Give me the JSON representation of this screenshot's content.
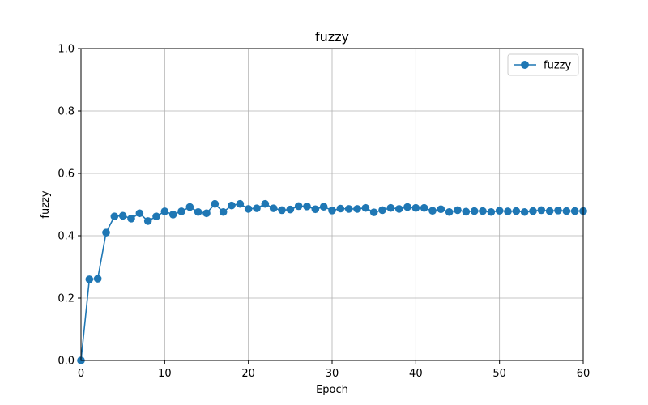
{
  "chart_data": {
    "type": "line",
    "title": "fuzzy",
    "xlabel": "Epoch",
    "ylabel": "fuzzy",
    "xlim": [
      0,
      60
    ],
    "ylim": [
      0,
      1.0
    ],
    "xticks": [
      0,
      10,
      20,
      30,
      40,
      50,
      60
    ],
    "yticks": [
      0.0,
      0.2,
      0.4,
      0.6,
      0.8,
      1.0
    ],
    "grid": true,
    "legend_position": "top-right",
    "series": [
      {
        "name": "fuzzy",
        "color": "#1f77b4",
        "marker": "circle",
        "x": [
          0,
          1,
          2,
          3,
          4,
          5,
          6,
          7,
          8,
          9,
          10,
          11,
          12,
          13,
          14,
          15,
          16,
          17,
          18,
          19,
          20,
          21,
          22,
          23,
          24,
          25,
          26,
          27,
          28,
          29,
          30,
          31,
          32,
          33,
          34,
          35,
          36,
          37,
          38,
          39,
          40,
          41,
          42,
          43,
          44,
          45,
          46,
          47,
          48,
          49,
          50,
          51,
          52,
          53,
          54,
          55,
          56,
          57,
          58,
          59,
          60
        ],
        "y": [
          0.0,
          0.26,
          0.262,
          0.41,
          0.462,
          0.464,
          0.455,
          0.472,
          0.447,
          0.462,
          0.478,
          0.468,
          0.478,
          0.492,
          0.476,
          0.472,
          0.502,
          0.476,
          0.497,
          0.502,
          0.486,
          0.488,
          0.502,
          0.488,
          0.482,
          0.484,
          0.495,
          0.494,
          0.485,
          0.493,
          0.481,
          0.487,
          0.486,
          0.486,
          0.489,
          0.475,
          0.482,
          0.489,
          0.486,
          0.492,
          0.489,
          0.489,
          0.48,
          0.485,
          0.476,
          0.482,
          0.477,
          0.479,
          0.479,
          0.476,
          0.48,
          0.478,
          0.479,
          0.476,
          0.479,
          0.482,
          0.479,
          0.481,
          0.479,
          0.479,
          0.479
        ]
      }
    ]
  }
}
